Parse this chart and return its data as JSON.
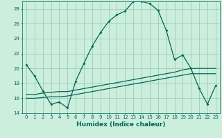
{
  "xlabel": "Humidex (Indice chaleur)",
  "bg_color": "#cceedd",
  "grid_color": "#99ccbb",
  "line_color": "#006655",
  "xlim": [
    -0.5,
    23.5
  ],
  "ylim": [
    14,
    29
  ],
  "yticks": [
    14,
    16,
    18,
    20,
    22,
    24,
    26,
    28
  ],
  "xticks": [
    0,
    1,
    2,
    3,
    4,
    5,
    6,
    7,
    8,
    9,
    10,
    11,
    12,
    13,
    14,
    15,
    16,
    17,
    18,
    19,
    20,
    21,
    22,
    23
  ],
  "series1_x": [
    0,
    1,
    2,
    3,
    4,
    5,
    6,
    7,
    8,
    9,
    10,
    11,
    12,
    13,
    14,
    15,
    16,
    17,
    18,
    19,
    20,
    21,
    22,
    23
  ],
  "series1_y": [
    20.5,
    19.0,
    17.0,
    15.2,
    15.5,
    14.7,
    18.3,
    20.7,
    23.0,
    24.8,
    26.3,
    27.2,
    27.7,
    29.0,
    29.0,
    28.7,
    27.8,
    25.1,
    21.2,
    21.8,
    20.0,
    17.3,
    15.2,
    17.7
  ],
  "series2_x": [
    0,
    1,
    2,
    3,
    4,
    5,
    6,
    7,
    8,
    9,
    10,
    11,
    12,
    13,
    14,
    15,
    16,
    17,
    18,
    19,
    20,
    21,
    22,
    23
  ],
  "series2_y": [
    16.5,
    16.5,
    16.7,
    16.8,
    16.9,
    16.9,
    17.1,
    17.3,
    17.5,
    17.7,
    17.9,
    18.1,
    18.3,
    18.5,
    18.7,
    18.9,
    19.1,
    19.3,
    19.5,
    19.8,
    20.0,
    20.0,
    20.0,
    20.0
  ],
  "series3_x": [
    0,
    1,
    2,
    3,
    4,
    5,
    6,
    7,
    8,
    9,
    10,
    11,
    12,
    13,
    14,
    15,
    16,
    17,
    18,
    19,
    20,
    21,
    22,
    23
  ],
  "series3_y": [
    16.0,
    16.0,
    16.1,
    16.2,
    16.2,
    16.3,
    16.5,
    16.7,
    16.9,
    17.1,
    17.3,
    17.5,
    17.7,
    17.9,
    18.1,
    18.3,
    18.5,
    18.7,
    18.9,
    19.1,
    19.3,
    19.3,
    19.3,
    19.3
  ]
}
